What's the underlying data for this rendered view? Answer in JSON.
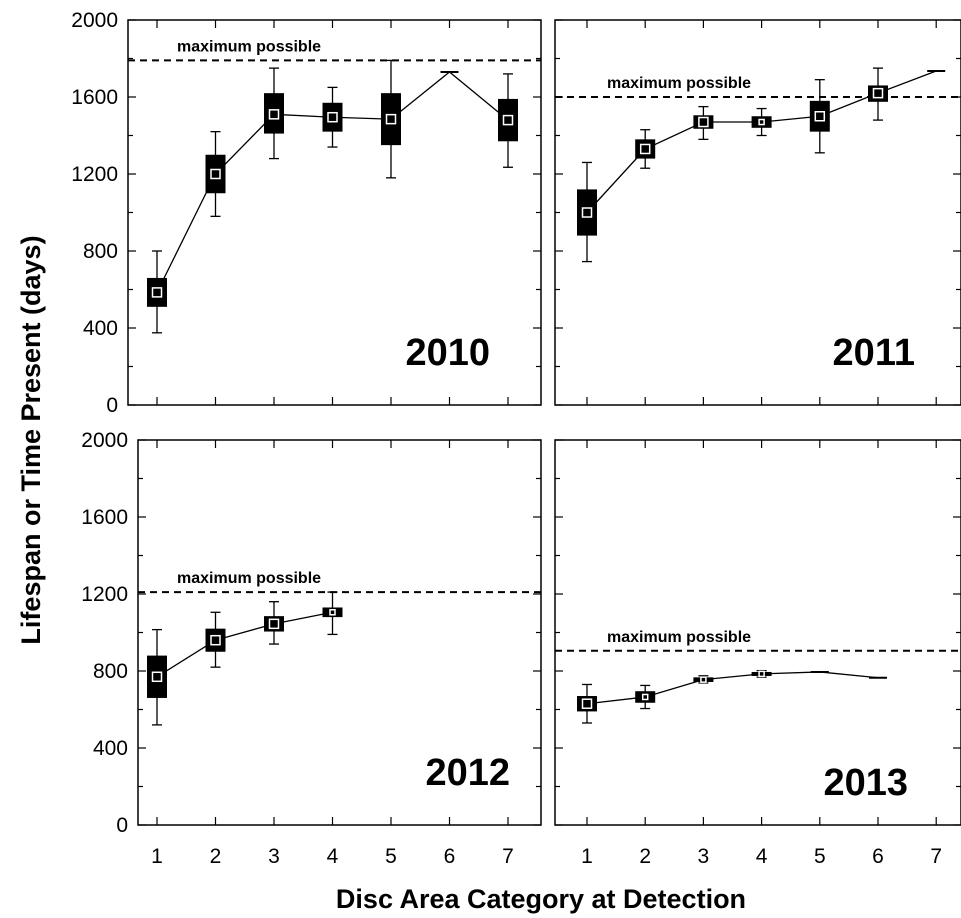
{
  "chart_data": {
    "type": "box",
    "xlabel": "Disc Area Category at Detection",
    "ylabel": "Lifespan or Time Present (days)",
    "x_ticks": [
      "1",
      "2",
      "3",
      "4",
      "5",
      "6",
      "7"
    ],
    "y_ticks": [
      "0",
      "400",
      "800",
      "1200",
      "1600",
      "2000"
    ],
    "ylim": [
      0,
      2000
    ],
    "xlim": [
      0.5,
      7.5
    ],
    "grid": false,
    "reference_label": "maximum possible",
    "panels": [
      {
        "label": "2010",
        "max_possible": 1790,
        "boxes": [
          {
            "x": 1,
            "median": 585,
            "q1": 510,
            "q3": 660,
            "whisker_low": 375,
            "whisker_high": 800
          },
          {
            "x": 2,
            "median": 1200,
            "q1": 1100,
            "q3": 1300,
            "whisker_low": 980,
            "whisker_high": 1420
          },
          {
            "x": 3,
            "median": 1510,
            "q1": 1410,
            "q3": 1620,
            "whisker_low": 1280,
            "whisker_high": 1750
          },
          {
            "x": 4,
            "median": 1495,
            "q1": 1420,
            "q3": 1570,
            "whisker_low": 1340,
            "whisker_high": 1650
          },
          {
            "x": 5,
            "median": 1485,
            "q1": 1350,
            "q3": 1620,
            "whisker_low": 1180,
            "whisker_high": 1790
          },
          {
            "x": 6,
            "median": 1730,
            "q1": 1730,
            "q3": 1730,
            "whisker_low": 1730,
            "whisker_high": 1730
          },
          {
            "x": 7,
            "median": 1480,
            "q1": 1370,
            "q3": 1590,
            "whisker_low": 1235,
            "whisker_high": 1720
          }
        ]
      },
      {
        "label": "2011",
        "max_possible": 1600,
        "boxes": [
          {
            "x": 1,
            "median": 1000,
            "q1": 880,
            "q3": 1120,
            "whisker_low": 745,
            "whisker_high": 1260
          },
          {
            "x": 2,
            "median": 1330,
            "q1": 1280,
            "q3": 1380,
            "whisker_low": 1230,
            "whisker_high": 1430
          },
          {
            "x": 3,
            "median": 1470,
            "q1": 1435,
            "q3": 1505,
            "whisker_low": 1380,
            "whisker_high": 1550
          },
          {
            "x": 4,
            "median": 1470,
            "q1": 1440,
            "q3": 1500,
            "whisker_low": 1400,
            "whisker_high": 1540
          },
          {
            "x": 5,
            "median": 1500,
            "q1": 1420,
            "q3": 1580,
            "whisker_low": 1310,
            "whisker_high": 1690
          },
          {
            "x": 6,
            "median": 1620,
            "q1": 1575,
            "q3": 1660,
            "whisker_low": 1480,
            "whisker_high": 1750
          },
          {
            "x": 7,
            "median": 1735,
            "q1": 1735,
            "q3": 1735,
            "whisker_low": 1735,
            "whisker_high": 1735
          }
        ]
      },
      {
        "label": "2012",
        "max_possible": 1210,
        "boxes": [
          {
            "x": 1,
            "median": 770,
            "q1": 660,
            "q3": 880,
            "whisker_low": 520,
            "whisker_high": 1015
          },
          {
            "x": 2,
            "median": 960,
            "q1": 900,
            "q3": 1020,
            "whisker_low": 820,
            "whisker_high": 1105
          },
          {
            "x": 3,
            "median": 1045,
            "q1": 1005,
            "q3": 1085,
            "whisker_low": 940,
            "whisker_high": 1160
          },
          {
            "x": 4,
            "median": 1105,
            "q1": 1080,
            "q3": 1130,
            "whisker_low": 990,
            "whisker_high": 1210
          }
        ]
      },
      {
        "label": "2013",
        "max_possible": 905,
        "boxes": [
          {
            "x": 1,
            "median": 630,
            "q1": 590,
            "q3": 670,
            "whisker_low": 530,
            "whisker_high": 730
          },
          {
            "x": 2,
            "median": 665,
            "q1": 635,
            "q3": 695,
            "whisker_low": 605,
            "whisker_high": 725
          },
          {
            "x": 3,
            "median": 755,
            "q1": 743,
            "q3": 767,
            "whisker_low": 738,
            "whisker_high": 775
          },
          {
            "x": 4,
            "median": 785,
            "q1": 775,
            "q3": 795,
            "whisker_low": 768,
            "whisker_high": 802
          },
          {
            "x": 5,
            "median": 795,
            "q1": 795,
            "q3": 795,
            "whisker_low": 795,
            "whisker_high": 795
          },
          {
            "x": 6,
            "median": 765,
            "q1": 765,
            "q3": 765,
            "whisker_low": 765,
            "whisker_high": 765
          }
        ]
      }
    ]
  }
}
